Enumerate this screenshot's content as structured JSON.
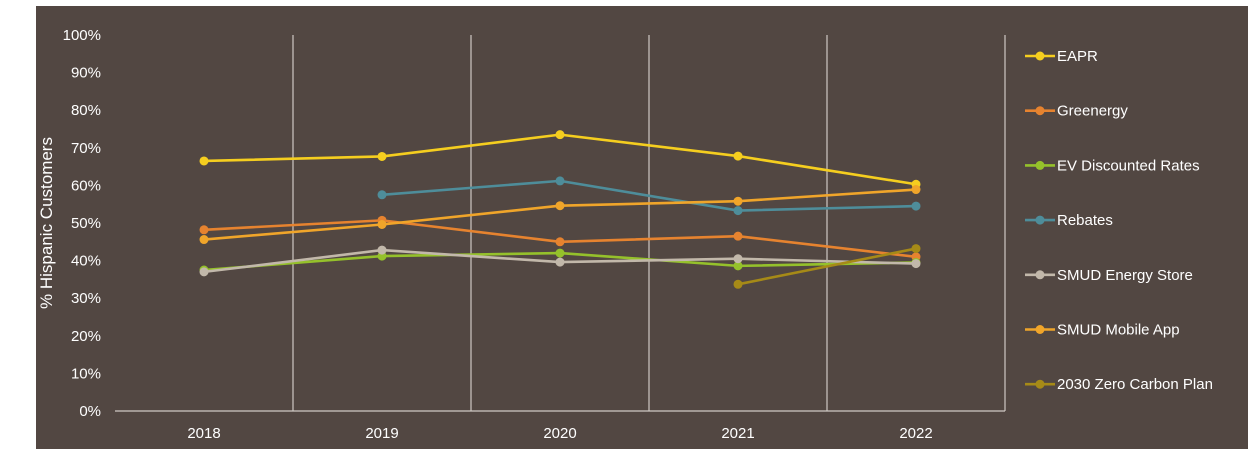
{
  "chart_data": {
    "type": "line",
    "title": "",
    "xlabel": "",
    "ylabel": "% Hispanic Customers",
    "categories": [
      "2018",
      "2019",
      "2020",
      "2021",
      "2022"
    ],
    "y_ticks": [
      "0%",
      "10%",
      "20%",
      "30%",
      "40%",
      "50%",
      "60%",
      "70%",
      "80%",
      "90%",
      "100%"
    ],
    "ylim": [
      0,
      100
    ],
    "grid": "vertical",
    "legend_position": "right",
    "series": [
      {
        "name": "EAPR",
        "color": "#F5CE1F",
        "values": [
          66.5,
          67.7,
          73.5,
          67.8,
          60.3
        ]
      },
      {
        "name": "Greenergy",
        "color": "#E6832F",
        "values": [
          48.2,
          50.7,
          45.0,
          46.5,
          41.0
        ]
      },
      {
        "name": "EV Discounted Rates",
        "color": "#95C12B",
        "values": [
          37.5,
          41.2,
          42.0,
          38.6,
          39.5
        ]
      },
      {
        "name": "Rebates",
        "color": "#4E8D9A",
        "values": [
          null,
          57.5,
          61.2,
          53.3,
          54.5
        ]
      },
      {
        "name": "SMUD Energy Store",
        "color": "#C2B8AA",
        "values": [
          37.0,
          42.8,
          39.6,
          40.5,
          39.2
        ]
      },
      {
        "name": "SMUD Mobile App",
        "color": "#F0A52A",
        "values": [
          45.6,
          49.6,
          54.6,
          55.8,
          58.9
        ]
      },
      {
        "name": "2030 Zero Carbon Plan",
        "color": "#A68A17",
        "values": [
          null,
          null,
          null,
          33.7,
          43.2
        ]
      }
    ]
  }
}
